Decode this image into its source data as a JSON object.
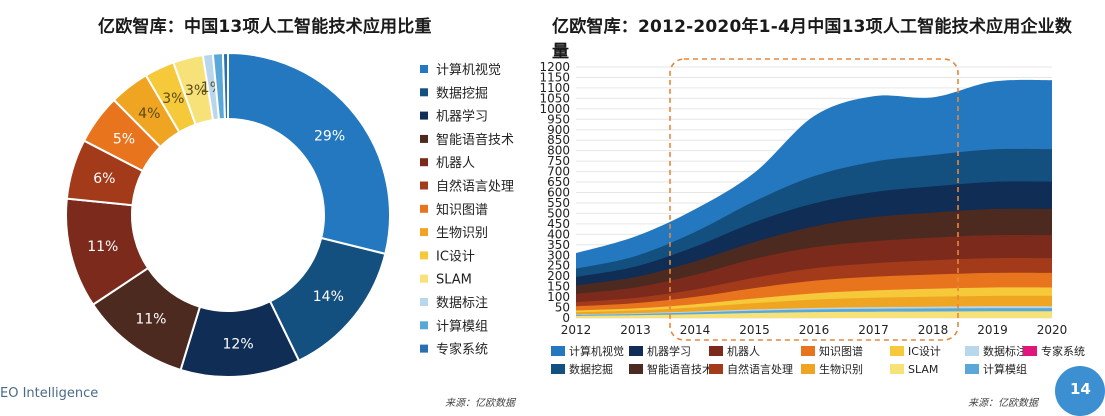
{
  "left_chart_title": "亿欧智库：中国13项人工智能技术应用比重",
  "right_chart_title": "亿欧智库：2012-2020年1-4月中国13项人工智能技术应用企业数量",
  "brand_text": "EO Intelligence",
  "source_left": "来源：亿欧数据",
  "source_right": "来源：亿欧数据",
  "page_number": "14",
  "colors": {
    "计算机视觉": "#2378bf",
    "数据挖掘": "#14507f",
    "机器学习": "#0f2d55",
    "智能语音技术": "#4d2a1f",
    "机器人": "#7b2a1c",
    "自然语言处理": "#a33a1a",
    "知识图谱": "#e8751e",
    "生物识别": "#f0a522",
    "IC设计": "#f6c93a",
    "SLAM": "#f7e27a",
    "数据标注": "#b9d7ec",
    "计算模组": "#5aa8d8",
    "专家系统": "#2a6fb0",
    "highlight_box": "#e8873a"
  },
  "chart_data": [
    {
      "type": "pie",
      "title": "亿欧智库：中国13项人工智能技术应用比重",
      "categories": [
        "计算机视觉",
        "数据挖掘",
        "机器学习",
        "智能语音技术",
        "机器人",
        "自然语言处理",
        "知识图谱",
        "生物识别",
        "IC设计",
        "SLAM",
        "数据标注",
        "计算模组",
        "专家系统"
      ],
      "values": [
        29,
        14,
        12,
        11,
        11,
        6,
        5,
        4,
        3,
        3,
        1,
        1,
        0.5
      ],
      "labels": [
        "29%",
        "14%",
        "12%",
        "11%",
        "11%",
        "6%",
        "5%",
        "4%",
        "3%",
        "3%",
        "1%",
        "",
        ""
      ],
      "legend_placement": "right"
    },
    {
      "type": "area",
      "title": "亿欧智库：2012-2020年1-4月中国13项人工智能技术应用企业数量",
      "x": [
        "2012",
        "2013",
        "2014",
        "2015",
        "2016",
        "2017",
        "2018",
        "2019",
        "2020"
      ],
      "ylim": [
        0,
        1200
      ],
      "yticks": [
        0,
        50,
        100,
        150,
        200,
        250,
        300,
        350,
        400,
        450,
        500,
        550,
        600,
        650,
        700,
        750,
        800,
        850,
        900,
        950,
        1000,
        1050,
        1100,
        1150,
        1200
      ],
      "stack_order": [
        "SLAM",
        "计算模组",
        "数据标注",
        "生物识别",
        "IC设计",
        "知识图谱",
        "自然语言处理",
        "机器人",
        "智能语音技术",
        "机器学习",
        "数据挖掘",
        "计算机视觉"
      ],
      "series": [
        {
          "name": "SLAM",
          "values": [
            10,
            13,
            18,
            24,
            28,
            30,
            31,
            32,
            32
          ]
        },
        {
          "name": "计算模组",
          "values": [
            5,
            6,
            8,
            11,
            13,
            14,
            15,
            15,
            15
          ]
        },
        {
          "name": "数据标注",
          "values": [
            3,
            4,
            5,
            6,
            7,
            8,
            8,
            9,
            9
          ]
        },
        {
          "name": "生物识别",
          "values": [
            10,
            13,
            20,
            30,
            40,
            45,
            48,
            50,
            50
          ]
        },
        {
          "name": "IC设计",
          "values": [
            8,
            10,
            15,
            22,
            30,
            35,
            38,
            40,
            40
          ]
        },
        {
          "name": "知识图谱",
          "values": [
            20,
            25,
            35,
            50,
            60,
            65,
            68,
            70,
            70
          ]
        },
        {
          "name": "自然语言处理",
          "values": [
            20,
            25,
            35,
            50,
            60,
            65,
            68,
            70,
            70
          ]
        },
        {
          "name": "机器人",
          "values": [
            40,
            50,
            70,
            90,
            100,
            105,
            108,
            110,
            110
          ]
        },
        {
          "name": "智能语音技术",
          "values": [
            40,
            50,
            65,
            80,
            100,
            115,
            120,
            125,
            126
          ]
        },
        {
          "name": "机器学习",
          "values": [
            40,
            50,
            70,
            95,
            110,
            120,
            125,
            130,
            130
          ]
        },
        {
          "name": "数据挖掘",
          "values": [
            40,
            50,
            70,
            100,
            130,
            145,
            150,
            155,
            155
          ]
        },
        {
          "name": "计算机视觉",
          "values": [
            74,
            94,
            109,
            137,
            287,
            313,
            276,
            324,
            330
          ]
        }
      ],
      "highlight_range": [
        "2014",
        "2018"
      ],
      "legend": [
        "计算机视觉",
        "机器学习",
        "机器人",
        "知识图谱",
        "IC设计",
        "数据标注",
        "专家系统",
        "数据挖掘",
        "智能语音技术",
        "自然语言处理",
        "生物识别",
        "SLAM",
        "计算模组"
      ],
      "legend_placement": "bottom"
    }
  ]
}
